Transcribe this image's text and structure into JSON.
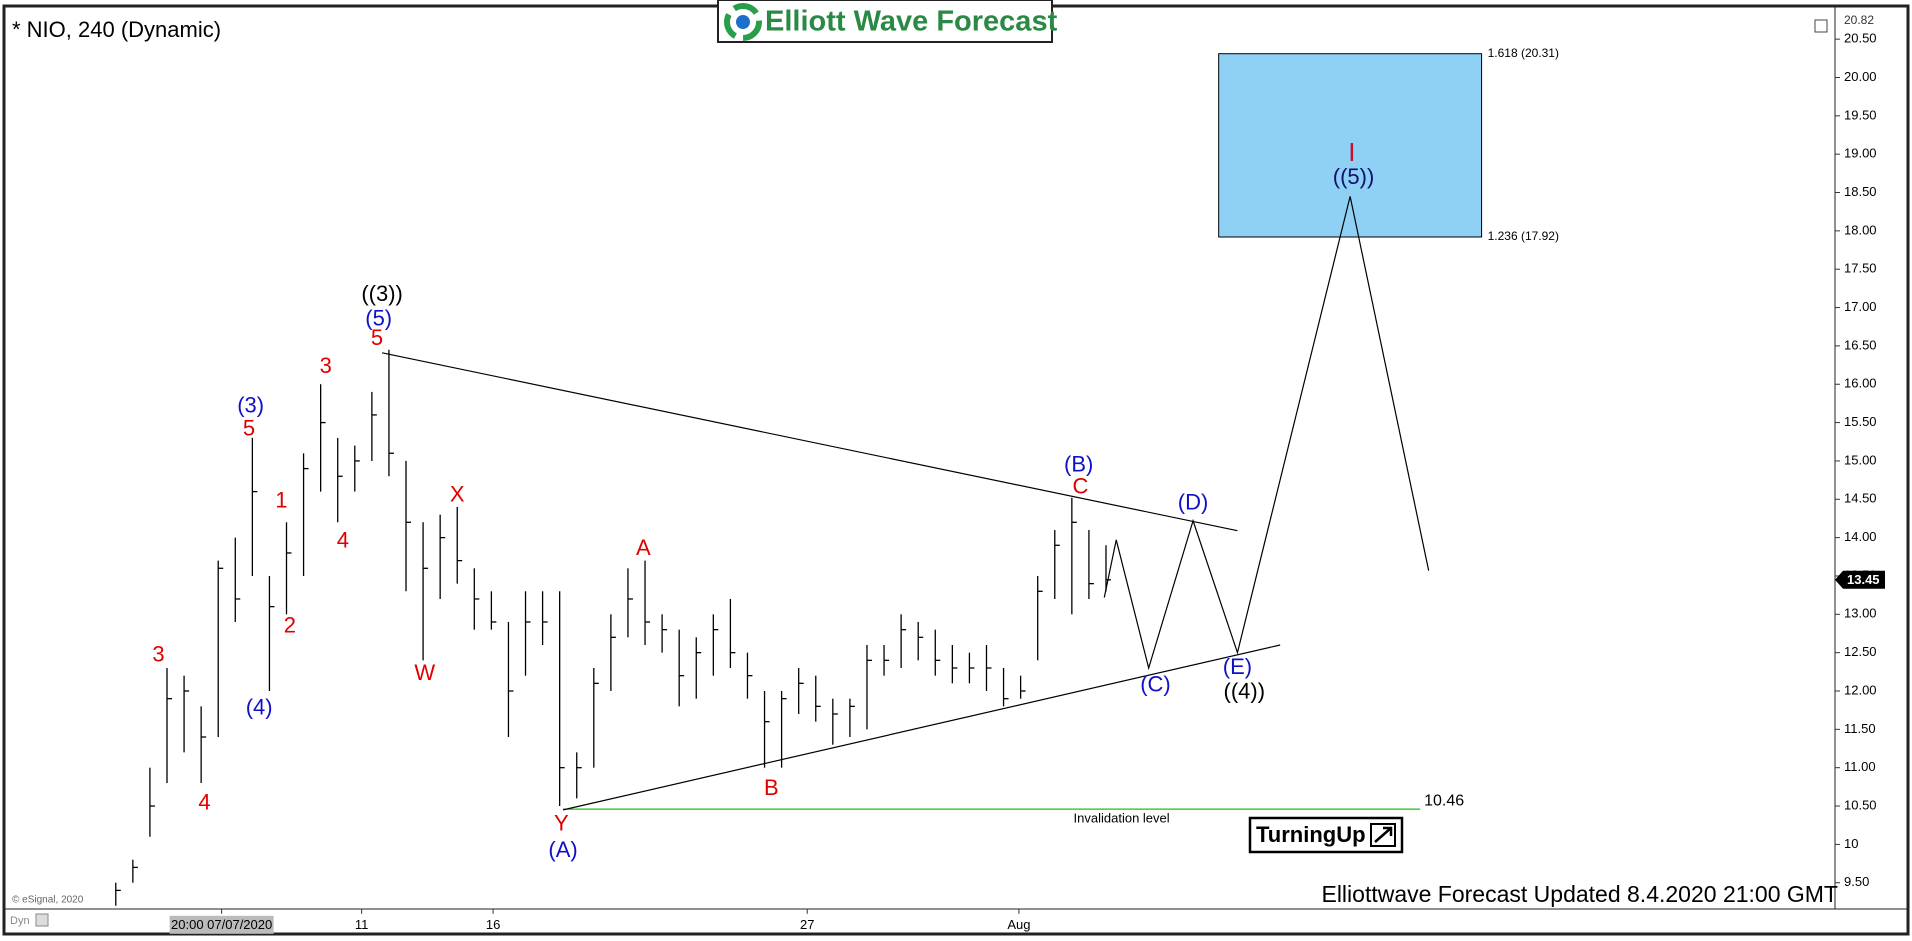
{
  "chart_data": {
    "type": "hlc",
    "title": "* NIO, 240 (Dynamic)",
    "logo": "Elliott Wave Forecast",
    "footer": "Elliottwave Forecast Updated 8.4.2020 21:00 GMT",
    "credit": "© eSignal, 2020",
    "mode": "Dyn",
    "badge": "TurningUp",
    "bar_color": "#000000",
    "high": [
      9.5,
      9.8,
      11.0,
      12.3,
      12.2,
      11.8,
      13.7,
      14.0,
      15.3,
      13.5,
      14.2,
      15.1,
      16.0,
      15.3,
      15.2,
      15.9,
      16.45,
      15.0,
      14.2,
      14.3,
      14.4,
      13.6,
      13.3,
      12.9,
      13.3,
      13.3,
      13.3,
      11.2,
      12.3,
      13.0,
      13.6,
      13.7,
      13.0,
      12.8,
      12.7,
      13.0,
      13.2,
      12.5,
      12.0,
      12.0,
      12.3,
      12.2,
      11.9,
      11.9,
      12.6,
      12.6,
      13.0,
      12.9,
      12.8,
      12.6,
      12.5,
      12.6,
      12.3,
      12.2,
      13.5,
      14.1,
      14.52,
      14.1,
      13.9
    ],
    "low": [
      9.2,
      9.5,
      10.1,
      10.8,
      11.2,
      10.8,
      11.4,
      12.9,
      13.5,
      12.0,
      13.0,
      13.5,
      14.6,
      14.2,
      14.6,
      15.0,
      14.8,
      13.3,
      12.4,
      13.2,
      13.4,
      12.8,
      12.8,
      11.4,
      12.2,
      12.6,
      10.5,
      10.6,
      11.0,
      12.0,
      12.7,
      12.6,
      12.5,
      11.8,
      11.9,
      12.2,
      12.3,
      11.9,
      11.0,
      11.0,
      11.7,
      11.6,
      11.3,
      11.4,
      11.5,
      12.2,
      12.3,
      12.4,
      12.2,
      12.1,
      12.1,
      12.0,
      11.8,
      11.9,
      12.4,
      13.2,
      13.0,
      13.2,
      13.3
    ],
    "close": [
      9.4,
      9.7,
      10.5,
      11.9,
      12.0,
      11.4,
      13.6,
      13.2,
      14.6,
      13.1,
      13.8,
      14.9,
      15.5,
      14.8,
      15.0,
      15.6,
      15.1,
      14.2,
      13.6,
      14.0,
      13.7,
      13.2,
      12.9,
      12.0,
      12.9,
      12.9,
      11.0,
      11.0,
      12.1,
      12.7,
      13.2,
      12.9,
      12.8,
      12.2,
      12.5,
      12.8,
      12.5,
      12.2,
      11.6,
      11.9,
      12.1,
      11.8,
      11.7,
      11.8,
      12.4,
      12.4,
      12.8,
      12.7,
      12.4,
      12.3,
      12.3,
      12.3,
      11.9,
      12.0,
      13.3,
      13.9,
      14.2,
      13.4,
      13.45
    ],
    "last_price": 13.45,
    "xlim": [
      -6.43,
      100.7
    ],
    "ylim": [
      9.16,
      20.82
    ],
    "xticks": [
      {
        "value": 6.2,
        "label": "20:00 07/07/2020"
      },
      {
        "value": 14.4,
        "label": "11"
      },
      {
        "value": 22.1,
        "label": "16"
      },
      {
        "value": 40.5,
        "label": "27"
      },
      {
        "value": 52.9,
        "label": "Aug"
      }
    ],
    "yticks": [
      {
        "value": 9.5,
        "label": "9.50"
      },
      10,
      {
        "value": 10.5,
        "label": "10.50"
      },
      {
        "value": 11,
        "label": "11.00"
      },
      {
        "value": 11.5,
        "label": "11.50"
      },
      {
        "value": 12,
        "label": "12.00"
      },
      {
        "value": 12.5,
        "label": "12.50"
      },
      {
        "value": 13,
        "label": "13.00"
      },
      {
        "value": 13.5,
        "label": "13.50"
      },
      {
        "value": 14,
        "label": "14.00"
      },
      {
        "value": 14.5,
        "label": "14.50"
      },
      {
        "value": 15,
        "label": "15.00"
      },
      {
        "value": 15.5,
        "label": "15.50"
      },
      {
        "value": 16,
        "label": "16.00"
      },
      {
        "value": 16.5,
        "label": "16.50"
      },
      {
        "value": 17,
        "label": "17.00"
      },
      {
        "value": 17.5,
        "label": "17.50"
      },
      {
        "value": 18,
        "label": "18.00"
      },
      {
        "value": 18.5,
        "label": "18.50"
      },
      {
        "value": 19,
        "label": "19.00"
      },
      {
        "value": 19.5,
        "label": "19.50"
      },
      {
        "value": 20,
        "label": "20.00"
      },
      {
        "value": 20.5,
        "label": "20.50"
      }
    ],
    "trendlines": [
      {
        "x": [
          15.6,
          65.7
        ],
        "values": [
          16.41,
          14.09
        ]
      },
      {
        "x": [
          26.2,
          68.2
        ],
        "values": [
          10.45,
          12.6
        ]
      }
    ],
    "projection": {
      "x": [
        57.9,
        58.6,
        60.5,
        63.1,
        65.7,
        72.3,
        76.9
      ],
      "values": [
        13.22,
        13.97,
        12.3,
        14.22,
        12.5,
        18.45,
        13.57
      ]
    },
    "invalidation": {
      "value": 10.46,
      "label": "Invalidation level",
      "x": [
        26.2,
        76.4
      ],
      "color": "#19c219"
    },
    "target_zone": {
      "top": {
        "value": 20.31,
        "label": "1.618 (20.31)"
      },
      "bottom": {
        "value": 17.92,
        "label": "1.236 (17.92)"
      },
      "x_range": [
        64.6,
        80
      ],
      "color": "#8fd0f5"
    },
    "annotations": [
      {
        "text": "((3))",
        "x": 15.6,
        "y": 17.16,
        "color": "#000000"
      },
      {
        "text": "(5)",
        "x": 15.4,
        "y": 16.84,
        "color": "#1010c8"
      },
      {
        "text": "5",
        "x": 15.3,
        "y": 16.59,
        "color": "#e00000"
      },
      {
        "text": "3",
        "x": 12.3,
        "y": 16.22,
        "color": "#e00000"
      },
      {
        "text": "(3)",
        "x": 7.9,
        "y": 15.71,
        "color": "#1010c8"
      },
      {
        "text": "5",
        "x": 7.8,
        "y": 15.41,
        "color": "#e00000"
      },
      {
        "text": "1",
        "x": 9.7,
        "y": 14.47,
        "color": "#e00000"
      },
      {
        "text": "2",
        "x": 10.2,
        "y": 12.84,
        "color": "#e00000"
      },
      {
        "text": "4",
        "x": 13.3,
        "y": 13.95,
        "color": "#e00000"
      },
      {
        "text": "(4)",
        "x": 8.4,
        "y": 11.77,
        "color": "#1010c8"
      },
      {
        "text": "3",
        "x": 2.5,
        "y": 12.46,
        "color": "#e00000"
      },
      {
        "text": "4",
        "x": 5.2,
        "y": 10.53,
        "color": "#e00000"
      },
      {
        "text": "X",
        "x": 20.0,
        "y": 14.55,
        "color": "#e00000"
      },
      {
        "text": "W",
        "x": 18.1,
        "y": 12.22,
        "color": "#e00000"
      },
      {
        "text": "Y",
        "x": 26.1,
        "y": 10.26,
        "color": "#e00000"
      },
      {
        "text": "(A)",
        "x": 26.2,
        "y": 9.91,
        "color": "#1010c8"
      },
      {
        "text": "A",
        "x": 30.9,
        "y": 13.85,
        "color": "#e00000"
      },
      {
        "text": "B",
        "x": 38.4,
        "y": 10.72,
        "color": "#e00000"
      },
      {
        "text": "(B)",
        "x": 56.4,
        "y": 14.94,
        "color": "#1010c8"
      },
      {
        "text": "C",
        "x": 56.5,
        "y": 14.65,
        "color": "#e00000"
      },
      {
        "text": "(D)",
        "x": 63.1,
        "y": 14.44,
        "color": "#1010c8"
      },
      {
        "text": "(C)",
        "x": 60.9,
        "y": 12.07,
        "color": "#1010c8"
      },
      {
        "text": "(E)",
        "x": 65.7,
        "y": 12.3,
        "color": "#1010c8"
      },
      {
        "text": "((4))",
        "x": 66.1,
        "y": 11.98,
        "color": "#000000"
      },
      {
        "text": "I",
        "x": 72.4,
        "y": 19.0,
        "color": "#c8102e"
      },
      {
        "text": "((5))",
        "x": 72.5,
        "y": 18.69,
        "color": "#10106e"
      }
    ]
  }
}
